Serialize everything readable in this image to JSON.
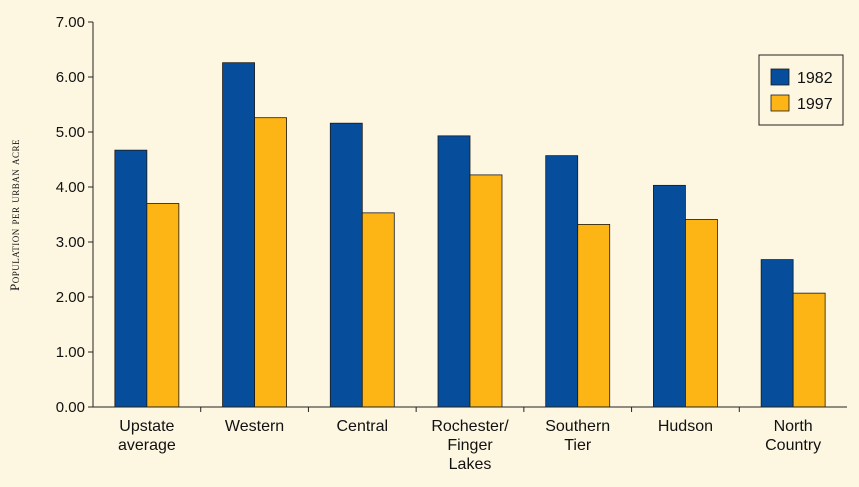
{
  "chart_data": {
    "type": "bar",
    "title": "",
    "xlabel": "",
    "ylabel": "Population per urban acre",
    "ylim": [
      0,
      7
    ],
    "yticks": [
      "0.00",
      "1.00",
      "2.00",
      "3.00",
      "4.00",
      "5.00",
      "6.00",
      "7.00"
    ],
    "categories": [
      [
        "Upstate",
        "average"
      ],
      [
        "Western"
      ],
      [
        "Central"
      ],
      [
        "Rochester/",
        "Finger",
        "Lakes"
      ],
      [
        "Southern",
        "Tier"
      ],
      [
        "Hudson"
      ],
      [
        "North",
        "Country"
      ]
    ],
    "series": [
      {
        "name": "1982",
        "color": "#064e9b",
        "values": [
          4.67,
          6.26,
          5.16,
          4.93,
          4.57,
          4.03,
          2.68
        ]
      },
      {
        "name": "1997",
        "color": "#fcb514",
        "values": [
          3.7,
          5.26,
          3.53,
          4.22,
          3.32,
          3.41,
          2.07
        ]
      }
    ],
    "legend_position": "top-right",
    "grid": false
  }
}
